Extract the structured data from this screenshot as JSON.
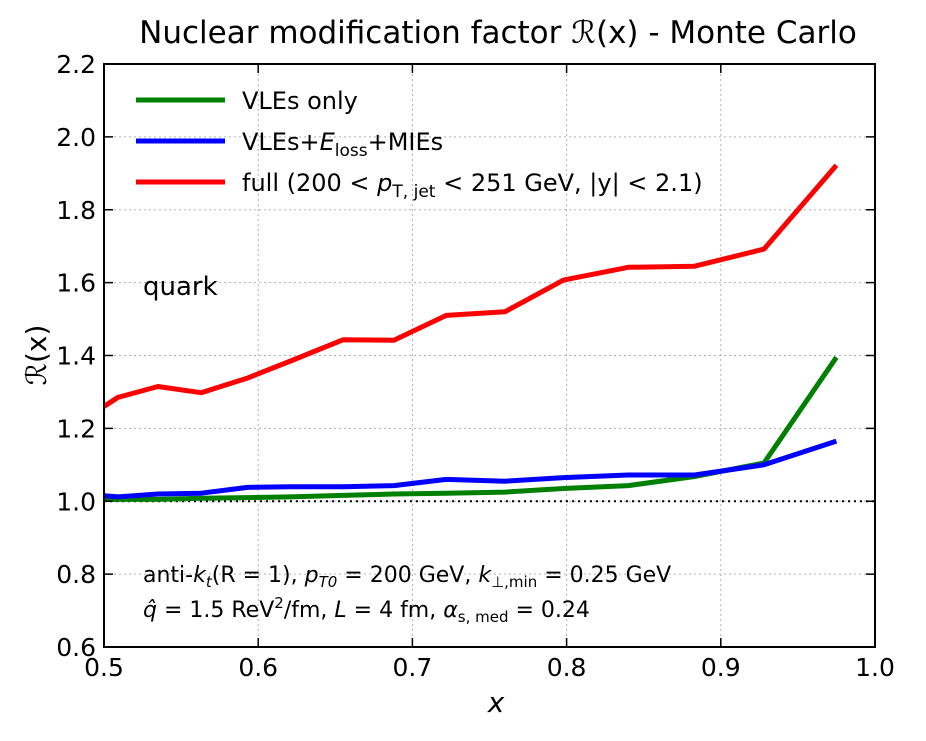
{
  "chart_data": {
    "type": "line",
    "title": "Nuclear modification factor ℛ(x) - Monte Carlo",
    "xlabel": "x",
    "ylabel": "ℛ(x)",
    "xlim": [
      0.5,
      1.0
    ],
    "ylim": [
      0.6,
      2.2
    ],
    "xticks": [
      "0.5",
      "0.6",
      "0.7",
      "0.8",
      "0.9",
      "1.0"
    ],
    "yticks": [
      "0.6",
      "0.8",
      "1.0",
      "1.2",
      "1.4",
      "1.6",
      "1.8",
      "2.0",
      "2.2"
    ],
    "grid": true,
    "reference_line": {
      "y": 1.0,
      "style": "dotted"
    },
    "legend_position": "top-left",
    "series": [
      {
        "name": "VLEs only",
        "color": "#008000",
        "x": [
          0.5,
          0.509,
          0.535,
          0.563,
          0.593,
          0.621,
          0.655,
          0.688,
          0.722,
          0.76,
          0.798,
          0.84,
          0.883,
          0.928,
          0.975
        ],
        "y": [
          1.005,
          1.005,
          1.005,
          1.008,
          1.01,
          1.012,
          1.016,
          1.02,
          1.022,
          1.025,
          1.035,
          1.043,
          1.068,
          1.105,
          1.395
        ]
      },
      {
        "name": "VLEs+E_loss+MIEs",
        "color": "#0000ff",
        "x": [
          0.5,
          0.509,
          0.535,
          0.563,
          0.593,
          0.621,
          0.655,
          0.688,
          0.722,
          0.76,
          0.798,
          0.84,
          0.883,
          0.928,
          0.975
        ],
        "y": [
          1.015,
          1.012,
          1.02,
          1.022,
          1.038,
          1.04,
          1.04,
          1.043,
          1.06,
          1.055,
          1.065,
          1.072,
          1.072,
          1.1,
          1.165
        ]
      },
      {
        "name": "full (200 < p_T,jet < 251 GeV, |y| < 2.1)",
        "color": "#ff0000",
        "x": [
          0.5,
          0.509,
          0.535,
          0.563,
          0.593,
          0.621,
          0.655,
          0.688,
          0.722,
          0.76,
          0.798,
          0.84,
          0.883,
          0.928,
          0.975
        ],
        "y": [
          1.26,
          1.285,
          1.315,
          1.298,
          1.338,
          1.385,
          1.443,
          1.442,
          1.51,
          1.52,
          1.607,
          1.642,
          1.645,
          1.692,
          1.922
        ]
      }
    ],
    "legend_labels": {
      "vles_only": "VLEs only",
      "vles_prefix": "VLEs+",
      "eloss_E": "E",
      "eloss_sub": "loss",
      "mies_suffix": "+MIEs",
      "full_prefix": "full (200 < ",
      "full_p": "p",
      "full_sub": "T, jet",
      "full_suffix": " < 251 GeV, |y| < 2.1)"
    },
    "annotations": {
      "parton": "quark",
      "params_line1": {
        "a": "anti-",
        "k": "k",
        "k_sub": "t",
        "b": "(R = 1), ",
        "p": "p",
        "p_sub": "T0",
        "c": " = 200 GeV, ",
        "k2": "k",
        "k2_sub": "⊥,min",
        "d": " = 0.25 GeV"
      },
      "params_line2": {
        "q": "q̂",
        "a": " = 1.5 ReV",
        "sup": "2",
        "b": "/fm, ",
        "L": "L",
        "c": " = 4 fm, ",
        "alpha": "α",
        "alpha_sub": "s, med",
        "d": " = 0.24"
      }
    }
  }
}
